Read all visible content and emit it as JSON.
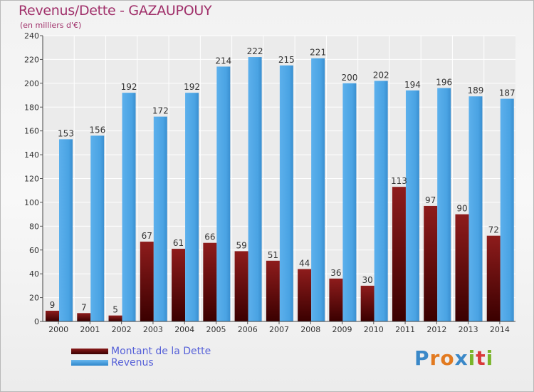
{
  "header": {
    "title": "Revenus/Dette - GAZAUPOUY",
    "subtitle": "(en milliers d'€)"
  },
  "legend": {
    "debt_label": "Montant de la Dette",
    "revenue_label": "Revenus"
  },
  "brand": {
    "letters": [
      "P",
      "r",
      "o",
      "x",
      "i",
      "t",
      "i"
    ],
    "colors": [
      "#3a88c8",
      "#e27a20",
      "#e27a20",
      "#3a88c8",
      "#7ab52a",
      "#d93a3a",
      "#7ab52a"
    ]
  },
  "colors": {
    "debt": "#7a1010",
    "revenue": "#4aa3e3",
    "title": "#a0306a",
    "legend_text": "#5560d8"
  },
  "chart_data": {
    "type": "bar",
    "title": "Revenus/Dette - GAZAUPOUY",
    "subtitle": "(en milliers d'€)",
    "categories": [
      "2000",
      "2001",
      "2002",
      "2003",
      "2004",
      "2005",
      "2006",
      "2007",
      "2008",
      "2009",
      "2010",
      "2011",
      "2012",
      "2013",
      "2014"
    ],
    "series": [
      {
        "name": "Montant de la Dette",
        "values": [
          9,
          7,
          5,
          67,
          61,
          66,
          59,
          51,
          44,
          36,
          30,
          113,
          97,
          90,
          72
        ]
      },
      {
        "name": "Revenus",
        "values": [
          153,
          156,
          192,
          172,
          192,
          214,
          222,
          215,
          221,
          200,
          202,
          194,
          196,
          189,
          187
        ]
      }
    ],
    "ylim": [
      0,
      240
    ],
    "yticks": [
      0,
      20,
      40,
      60,
      80,
      100,
      120,
      140,
      160,
      180,
      200,
      220,
      240
    ],
    "grid": true,
    "legend_position": "bottom-left"
  }
}
